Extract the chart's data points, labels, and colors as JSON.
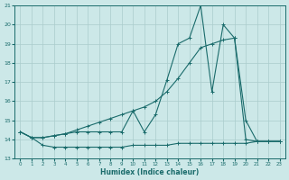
{
  "xlabel": "Humidex (Indice chaleur)",
  "xlim": [
    -0.5,
    23.5
  ],
  "ylim": [
    13,
    21
  ],
  "yticks": [
    13,
    14,
    15,
    16,
    17,
    18,
    19,
    20,
    21
  ],
  "xticks": [
    0,
    1,
    2,
    3,
    4,
    5,
    6,
    7,
    8,
    9,
    10,
    11,
    12,
    13,
    14,
    15,
    16,
    17,
    18,
    19,
    20,
    21,
    22,
    23
  ],
  "bg_color": "#cce8e8",
  "grid_color": "#aacccc",
  "line_color": "#1a6b6b",
  "line1_x": [
    0,
    1,
    2,
    3,
    4,
    5,
    6,
    7,
    8,
    9,
    10,
    11,
    12,
    13,
    14,
    15,
    16,
    17,
    18,
    19,
    20,
    21,
    22,
    23
  ],
  "line1_y": [
    14.4,
    14.1,
    13.7,
    13.6,
    13.6,
    13.6,
    13.6,
    13.6,
    13.6,
    13.6,
    13.7,
    13.7,
    13.7,
    13.7,
    13.8,
    13.8,
    13.8,
    13.8,
    13.8,
    13.8,
    13.8,
    13.9,
    13.9,
    13.9
  ],
  "line2_x": [
    0,
    1,
    2,
    3,
    4,
    5,
    6,
    7,
    8,
    9,
    10,
    11,
    12,
    13,
    14,
    15,
    16,
    17,
    18,
    19,
    20,
    21,
    22,
    23
  ],
  "line2_y": [
    14.4,
    14.1,
    14.1,
    14.2,
    14.3,
    14.5,
    14.7,
    14.9,
    15.1,
    15.3,
    15.5,
    15.7,
    16.0,
    16.5,
    17.2,
    18.0,
    18.8,
    19.0,
    19.2,
    19.3,
    14.0,
    13.9,
    13.9,
    13.9
  ],
  "line3_x": [
    0,
    1,
    2,
    3,
    4,
    5,
    6,
    7,
    8,
    9,
    10,
    11,
    12,
    13,
    14,
    15,
    16,
    17,
    18,
    19,
    20,
    21,
    22,
    23
  ],
  "line3_y": [
    14.4,
    14.1,
    14.1,
    14.2,
    14.3,
    14.4,
    14.4,
    14.4,
    14.4,
    14.4,
    15.5,
    14.4,
    15.3,
    17.1,
    19.0,
    19.3,
    21.0,
    16.5,
    20.0,
    19.3,
    15.0,
    13.9,
    13.9,
    13.9
  ]
}
